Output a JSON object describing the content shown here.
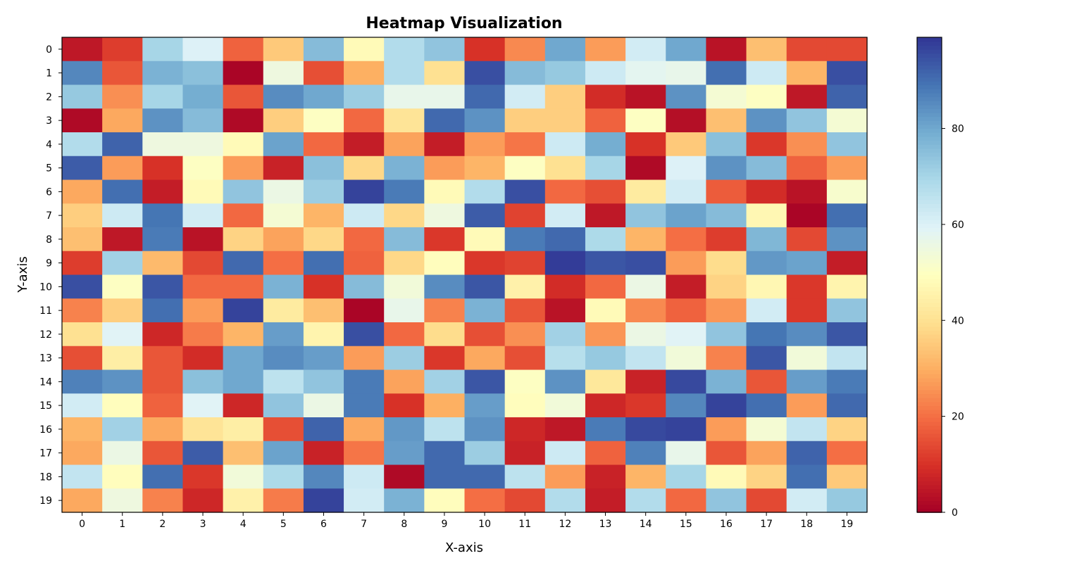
{
  "chart_data": {
    "type": "heatmap",
    "title": "Heatmap Visualization",
    "xlabel": "X-axis",
    "ylabel": "Y-axis",
    "x_ticks": [
      "0",
      "1",
      "2",
      "3",
      "4",
      "5",
      "6",
      "7",
      "8",
      "9",
      "10",
      "11",
      "12",
      "13",
      "14",
      "15",
      "16",
      "17",
      "18",
      "19"
    ],
    "y_ticks": [
      "0",
      "1",
      "2",
      "3",
      "4",
      "5",
      "6",
      "7",
      "8",
      "9",
      "10",
      "11",
      "12",
      "13",
      "14",
      "15",
      "16",
      "17",
      "18",
      "19"
    ],
    "colormap": "RdYlBu",
    "colorbar": {
      "range": [
        0,
        99
      ],
      "ticks": [
        0,
        20,
        40,
        60,
        80
      ],
      "tick_labels": [
        "0",
        "20",
        "40",
        "60",
        "80"
      ]
    },
    "values": [
      [
        5,
        12,
        70,
        60,
        18,
        35,
        76,
        48,
        68,
        74,
        10,
        24,
        80,
        27,
        62,
        80,
        4,
        33,
        14,
        14
      ],
      [
        86,
        16,
        78,
        75,
        1,
        55,
        15,
        30,
        68,
        40,
        95,
        76,
        73,
        63,
        58,
        57,
        90,
        63,
        31,
        95
      ],
      [
        73,
        25,
        70,
        79,
        16,
        85,
        80,
        72,
        57,
        57,
        91,
        62,
        36,
        9,
        4,
        84,
        53,
        50,
        5,
        92
      ],
      [
        2,
        29,
        84,
        76,
        2,
        36,
        50,
        19,
        41,
        91,
        84,
        36,
        36,
        18,
        50,
        3,
        33,
        84,
        74,
        53
      ],
      [
        68,
        92,
        55,
        55,
        48,
        81,
        19,
        6,
        28,
        6,
        27,
        21,
        63,
        79,
        10,
        35,
        75,
        11,
        25,
        74
      ],
      [
        93,
        27,
        10,
        50,
        27,
        7,
        75,
        38,
        78,
        27,
        31,
        50,
        40,
        70,
        2,
        60,
        84,
        76,
        18,
        27
      ],
      [
        29,
        90,
        6,
        48,
        74,
        56,
        72,
        97,
        88,
        48,
        68,
        95,
        19,
        15,
        43,
        62,
        17,
        9,
        4,
        52
      ],
      [
        36,
        63,
        89,
        62,
        19,
        53,
        31,
        63,
        38,
        55,
        93,
        13,
        62,
        5,
        74,
        81,
        76,
        47,
        1,
        90
      ],
      [
        33,
        5,
        88,
        4,
        37,
        28,
        38,
        19,
        76,
        11,
        48,
        88,
        91,
        69,
        31,
        20,
        12,
        77,
        14,
        84
      ],
      [
        12,
        71,
        32,
        14,
        91,
        20,
        90,
        18,
        38,
        49,
        11,
        13,
        98,
        94,
        95,
        27,
        39,
        83,
        81,
        6
      ],
      [
        95,
        50,
        94,
        19,
        19,
        78,
        10,
        76,
        54,
        85,
        94,
        45,
        9,
        19,
        56,
        6,
        37,
        47,
        11,
        46
      ],
      [
        23,
        36,
        90,
        27,
        97,
        43,
        33,
        1,
        57,
        23,
        78,
        16,
        4,
        48,
        24,
        18,
        26,
        62,
        11,
        74
      ],
      [
        40,
        59,
        8,
        22,
        31,
        82,
        46,
        95,
        19,
        39,
        15,
        25,
        71,
        26,
        56,
        59,
        74,
        89,
        85,
        94
      ],
      [
        15,
        44,
        16,
        9,
        80,
        85,
        82,
        27,
        72,
        11,
        29,
        15,
        67,
        73,
        65,
        54,
        23,
        94,
        54,
        65
      ],
      [
        87,
        84,
        16,
        75,
        80,
        66,
        74,
        88,
        28,
        71,
        94,
        50,
        84,
        42,
        7,
        96,
        78,
        16,
        82,
        88
      ],
      [
        62,
        49,
        18,
        59,
        8,
        74,
        56,
        88,
        10,
        30,
        82,
        49,
        54,
        8,
        11,
        86,
        97,
        90,
        27,
        91
      ],
      [
        31,
        71,
        29,
        41,
        44,
        15,
        92,
        29,
        83,
        66,
        84,
        8,
        5,
        88,
        96,
        97,
        27,
        53,
        65,
        37
      ],
      [
        29,
        56,
        16,
        93,
        33,
        81,
        7,
        21,
        82,
        91,
        72,
        7,
        63,
        18,
        87,
        57,
        16,
        28,
        92,
        20
      ],
      [
        65,
        49,
        90,
        11,
        54,
        69,
        86,
        63,
        2,
        91,
        91,
        66,
        27,
        7,
        31,
        70,
        48,
        37,
        90,
        35
      ],
      [
        29,
        55,
        23,
        8,
        45,
        22,
        97,
        62,
        78,
        49,
        20,
        14,
        68,
        6,
        68,
        19,
        74,
        14,
        62,
        73
      ]
    ]
  }
}
